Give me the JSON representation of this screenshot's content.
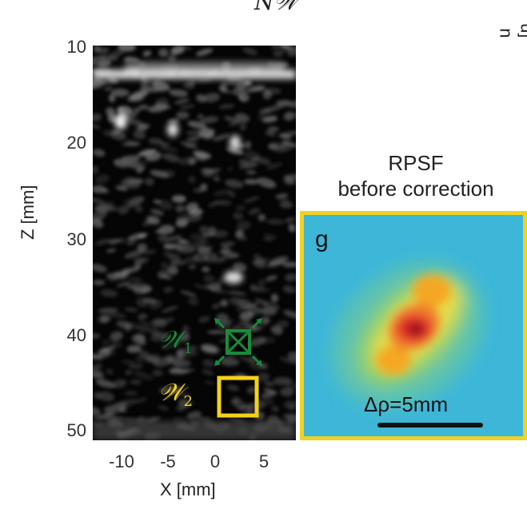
{
  "top_fragment": "N𝒲",
  "right_fragment": "u  [n",
  "bmode": {
    "ylabel": "Z [mm]",
    "xlabel": "X [mm]",
    "y_ticks": [
      "10",
      "20",
      "30",
      "40",
      "50"
    ],
    "x_ticks": [
      "-10",
      "-5",
      "0",
      "5"
    ],
    "window_1": {
      "label": "𝒲",
      "sub": "1",
      "color": "#1a8a3a"
    },
    "window_2": {
      "label": "𝒲",
      "sub": "2",
      "color": "#f2d21f"
    }
  },
  "rpsf": {
    "title_line1": "RPSF",
    "title_line2": "before correction",
    "panel_letter": "g",
    "scale_label": "Δρ=5mm",
    "border_color": "#f2d21f"
  }
}
